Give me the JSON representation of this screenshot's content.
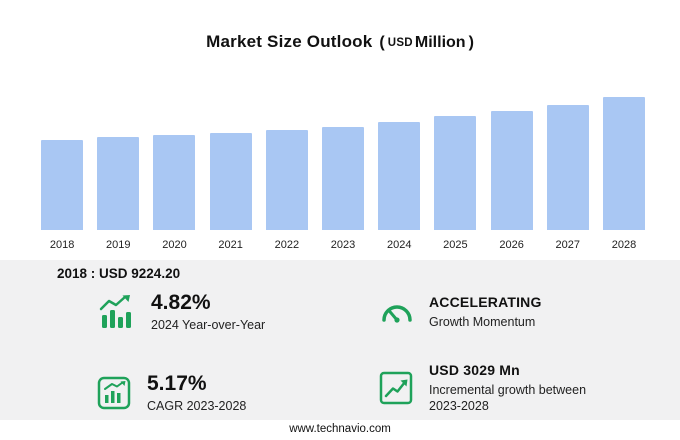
{
  "header": {
    "title": "Market Size Outlook",
    "paren_open": "(",
    "unit_currency": "USD",
    "unit_label": "Million",
    "paren_close": ")"
  },
  "chart_data": {
    "type": "bar",
    "title": "Market Size Outlook (USD Million)",
    "categories": [
      "2018",
      "2019",
      "2020",
      "2021",
      "2022",
      "2023",
      "2024",
      "2025",
      "2026",
      "2027",
      "2028"
    ],
    "values": [
      9224.2,
      9470,
      9680,
      9900,
      10200,
      10568,
      11077,
      11600,
      12150,
      12780,
      13597
    ],
    "ylabel": "USD Million",
    "ylim": [
      0,
      14000
    ],
    "grid": false,
    "legend": false
  },
  "annotation": {
    "text": "2018 : USD  9224.20"
  },
  "stats": [
    {
      "icon": "growth-bars-icon",
      "value": "4.82%",
      "label": "2024 Year-over-Year"
    },
    {
      "icon": "gauge-icon",
      "value": "ACCELERATING",
      "label": "Growth Momentum"
    },
    {
      "icon": "cagr-chart-icon",
      "value": "5.17%",
      "label": "CAGR 2023-2028"
    },
    {
      "icon": "incremental-growth-icon",
      "value": "USD 3029 Mn",
      "label": "Incremental growth between 2023-2028"
    }
  ],
  "footer": {
    "url": "www.technavio.com"
  },
  "colors": {
    "bar": "#A9C7F3",
    "green": "#1FA25A",
    "stats_bg": "#F1F1F2",
    "text_dark": "#111111"
  }
}
